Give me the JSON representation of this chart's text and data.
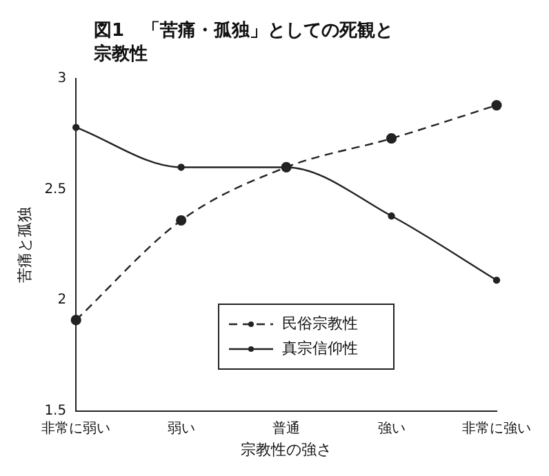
{
  "chart_data": {
    "type": "line",
    "title": "図1　「苦痛・孤独」としての死観と宗教性",
    "xlabel": "宗教性の強さ",
    "ylabel": "苦痛と孤独",
    "categories": [
      "非常に弱い",
      "弱い",
      "普通",
      "強い",
      "非常に強い"
    ],
    "series": [
      {
        "name": "民俗宗教性",
        "color": "#222222",
        "line_style": "dashed",
        "values": [
          1.91,
          2.36,
          2.6,
          2.73,
          2.88
        ]
      },
      {
        "name": "真宗信仰性",
        "color": "#222222",
        "line_style": "solid",
        "values": [
          2.78,
          2.6,
          2.6,
          2.38,
          2.09
        ]
      }
    ],
    "ylim": [
      1.5,
      3
    ],
    "yticks": [
      1.5,
      2,
      2.5,
      3
    ],
    "grid": false,
    "legend": "bottom",
    "marker": "circle"
  }
}
